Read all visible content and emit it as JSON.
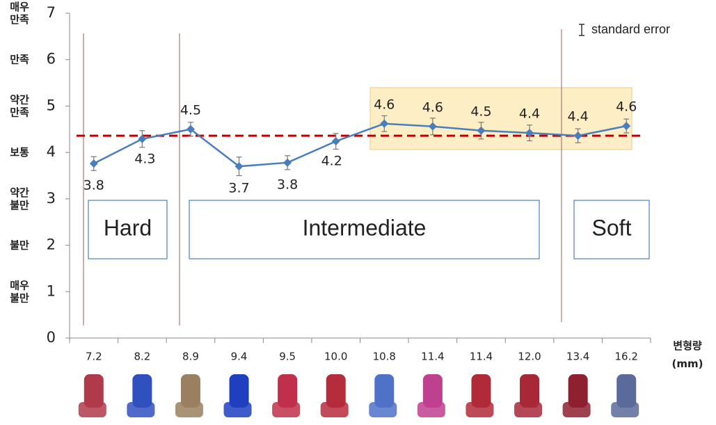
{
  "chart_data": {
    "type": "line",
    "categories": [
      "7.2",
      "8.2",
      "8.9",
      "9.4",
      "9.5",
      "10.0",
      "10.8",
      "11.4",
      "11.4",
      "12.0",
      "13.4",
      "16.2"
    ],
    "series": [
      {
        "name": "standard error",
        "color": "#4a7ebb",
        "values": [
          3.76,
          4.29,
          4.5,
          3.7,
          3.78,
          4.24,
          4.62,
          4.56,
          4.47,
          4.42,
          4.36,
          4.57
        ],
        "value_labels": [
          "3.8",
          "4.3",
          "4.5",
          "3.7",
          "3.8",
          "4.2",
          "4.6",
          "4.6",
          "4.5",
          "4.4",
          "4.4",
          "4.6"
        ],
        "errors": [
          0.15,
          0.18,
          0.15,
          0.2,
          0.15,
          0.17,
          0.17,
          0.18,
          0.18,
          0.17,
          0.15,
          0.15
        ]
      }
    ],
    "reference_line": {
      "value": 4.36,
      "color": "#c00000"
    },
    "ylim": [
      0,
      7
    ],
    "yticks": [
      0,
      1,
      2,
      3,
      4,
      5,
      6,
      7
    ],
    "ytick_descriptions": [
      null,
      [
        "매우",
        "불만"
      ],
      [
        "불만"
      ],
      [
        "약간",
        "불만"
      ],
      [
        "보통"
      ],
      [
        "약간",
        "만족"
      ],
      [
        "만족"
      ],
      [
        "매우",
        "만족"
      ]
    ],
    "x_label": [
      "변형량",
      "(mm)"
    ],
    "regions": [
      "Hard",
      "Intermediate",
      "Soft"
    ]
  }
}
